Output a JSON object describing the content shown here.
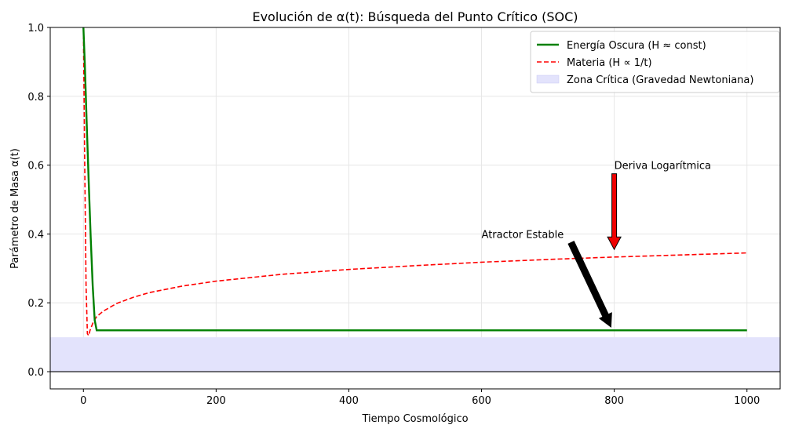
{
  "chart_data": {
    "type": "line",
    "title": "Evolución de α(t): Búsqueda del Punto Crítico (SOC)",
    "xlabel": "Tiempo Cosmológico",
    "ylabel": "Parámetro de Masa α(t)",
    "xlim": [
      -50,
      1050
    ],
    "ylim": [
      -0.05,
      1.0
    ],
    "xticks": [
      0,
      200,
      400,
      600,
      800,
      1000
    ],
    "xtick_labels": [
      "0",
      "200",
      "400",
      "600",
      "800",
      "1000"
    ],
    "yticks": [
      0.0,
      0.2,
      0.4,
      0.6,
      0.8,
      1.0
    ],
    "ytick_labels": [
      "0.0",
      "0.2",
      "0.4",
      "0.6",
      "0.8",
      "1.0"
    ],
    "grid": true,
    "legend_position": "top-right",
    "series": [
      {
        "name": "Energía Oscura (H ≈ const)",
        "color": "#008000",
        "style": "solid",
        "x": [
          0,
          2,
          5,
          8,
          11,
          14,
          17,
          20,
          25,
          50,
          100,
          200,
          400,
          600,
          800,
          1000
        ],
        "y": [
          1.0,
          0.9,
          0.72,
          0.55,
          0.39,
          0.25,
          0.15,
          0.12,
          0.12,
          0.12,
          0.12,
          0.12,
          0.12,
          0.12,
          0.12,
          0.12
        ]
      },
      {
        "name": "Materia (H ∝ 1/t)",
        "color": "#ff0000",
        "style": "dashed",
        "x": [
          0,
          2,
          4,
          6,
          8,
          10,
          15,
          20,
          30,
          50,
          75,
          100,
          150,
          200,
          300,
          400,
          500,
          600,
          700,
          800,
          900,
          1000
        ],
        "y": [
          1.0,
          0.6,
          0.25,
          0.11,
          0.105,
          0.12,
          0.145,
          0.16,
          0.176,
          0.198,
          0.216,
          0.23,
          0.249,
          0.263,
          0.283,
          0.297,
          0.308,
          0.318,
          0.326,
          0.333,
          0.339,
          0.345
        ]
      }
    ],
    "shaded_region": {
      "name": "Zona Crítica (Gravedad Newtoniana)",
      "y_from": 0.0,
      "y_to": 0.1,
      "color": "#e3e3fc"
    },
    "hline": {
      "y": 0.0,
      "color": "#000000"
    },
    "annotations": [
      {
        "text": "Deriva Logarítmica",
        "text_xy": [
          800,
          0.6
        ],
        "arrow_from": [
          800,
          0.575
        ],
        "arrow_to": [
          800,
          0.355
        ],
        "arrow_color": "#ee0000"
      },
      {
        "text": "Atractor Estable",
        "text_xy": [
          600,
          0.4
        ],
        "arrow_from": [
          735,
          0.375
        ],
        "arrow_to": [
          795,
          0.13
        ],
        "arrow_color": "#000000"
      }
    ]
  }
}
